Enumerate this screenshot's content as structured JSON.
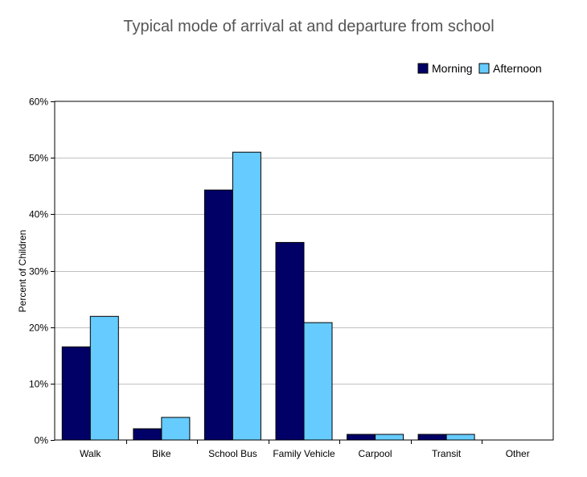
{
  "chart_data": {
    "type": "bar",
    "title": "Typical mode of arrival at and departure from school",
    "xlabel": "",
    "ylabel": "Percent of Children",
    "categories": [
      "Walk",
      "Bike",
      "School Bus",
      "Family Vehicle",
      "Carpool",
      "Transit",
      "Other"
    ],
    "series": [
      {
        "name": "Morning",
        "color": "#000066",
        "values": [
          16.5,
          2.0,
          44.3,
          35.0,
          1.0,
          1.0,
          0.0
        ]
      },
      {
        "name": "Afternoon",
        "color": "#66CCFF",
        "values": [
          21.9,
          4.0,
          51.0,
          20.8,
          1.0,
          1.0,
          0.0
        ]
      }
    ],
    "ylim": [
      0,
      60
    ],
    "yticks": [
      0,
      10,
      20,
      30,
      40,
      50,
      60
    ],
    "ytick_labels": [
      "0%",
      "10%",
      "20%",
      "30%",
      "40%",
      "50%",
      "60%"
    ],
    "grid": true,
    "legend_position": "top-right"
  }
}
